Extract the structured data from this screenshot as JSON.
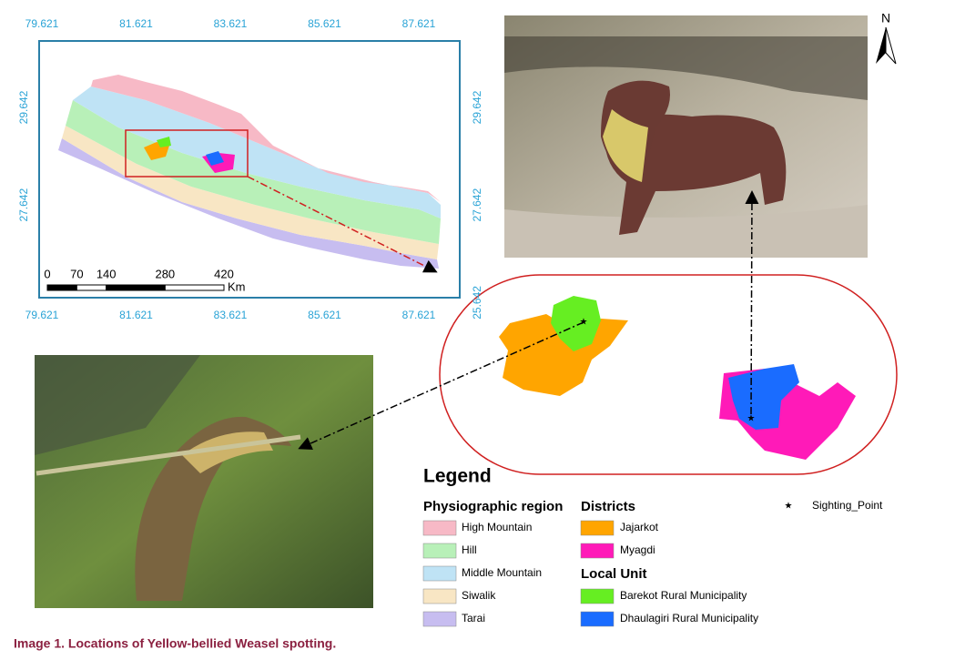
{
  "map": {
    "x_labels_top": [
      79.621,
      81.621,
      83.621,
      85.621,
      87.621
    ],
    "x_labels_bottom": [
      79.621,
      81.621,
      83.621,
      85.621,
      87.621
    ],
    "y_labels_left": [
      29.642,
      27.642
    ],
    "y_labels_right": [
      29.642,
      27.642,
      25.642
    ],
    "scale_bar": {
      "labels": [
        0,
        70,
        140,
        280,
        420
      ],
      "unit": "Km"
    }
  },
  "north_label": "N",
  "legend": {
    "title": "Legend",
    "physiographic": {
      "heading": "Physiographic region",
      "items": [
        {
          "label": "High Mountain",
          "color": "#f7b9c6"
        },
        {
          "label": "Hill",
          "color": "#b8f0b8"
        },
        {
          "label": "Middle Mountain",
          "color": "#bfe3f5"
        },
        {
          "label": "Siwalik",
          "color": "#f8e6c4"
        },
        {
          "label": "Tarai",
          "color": "#c7bdf0"
        }
      ]
    },
    "districts": {
      "heading": "Districts",
      "items": [
        {
          "label": "Jajarkot",
          "color": "#ffa500"
        },
        {
          "label": "Myagdi",
          "color": "#ff1ab8"
        }
      ]
    },
    "local_unit": {
      "heading": "Local Unit",
      "items": [
        {
          "label": "Barekot Rural Municipality",
          "color": "#66ee22"
        },
        {
          "label": "Dhaulagiri Rural Municipality",
          "color": "#1a6cff"
        }
      ]
    },
    "sighting": "Sighting_Point"
  },
  "caption": "Image 1. Locations of Yellow-bellied Weasel spotting."
}
